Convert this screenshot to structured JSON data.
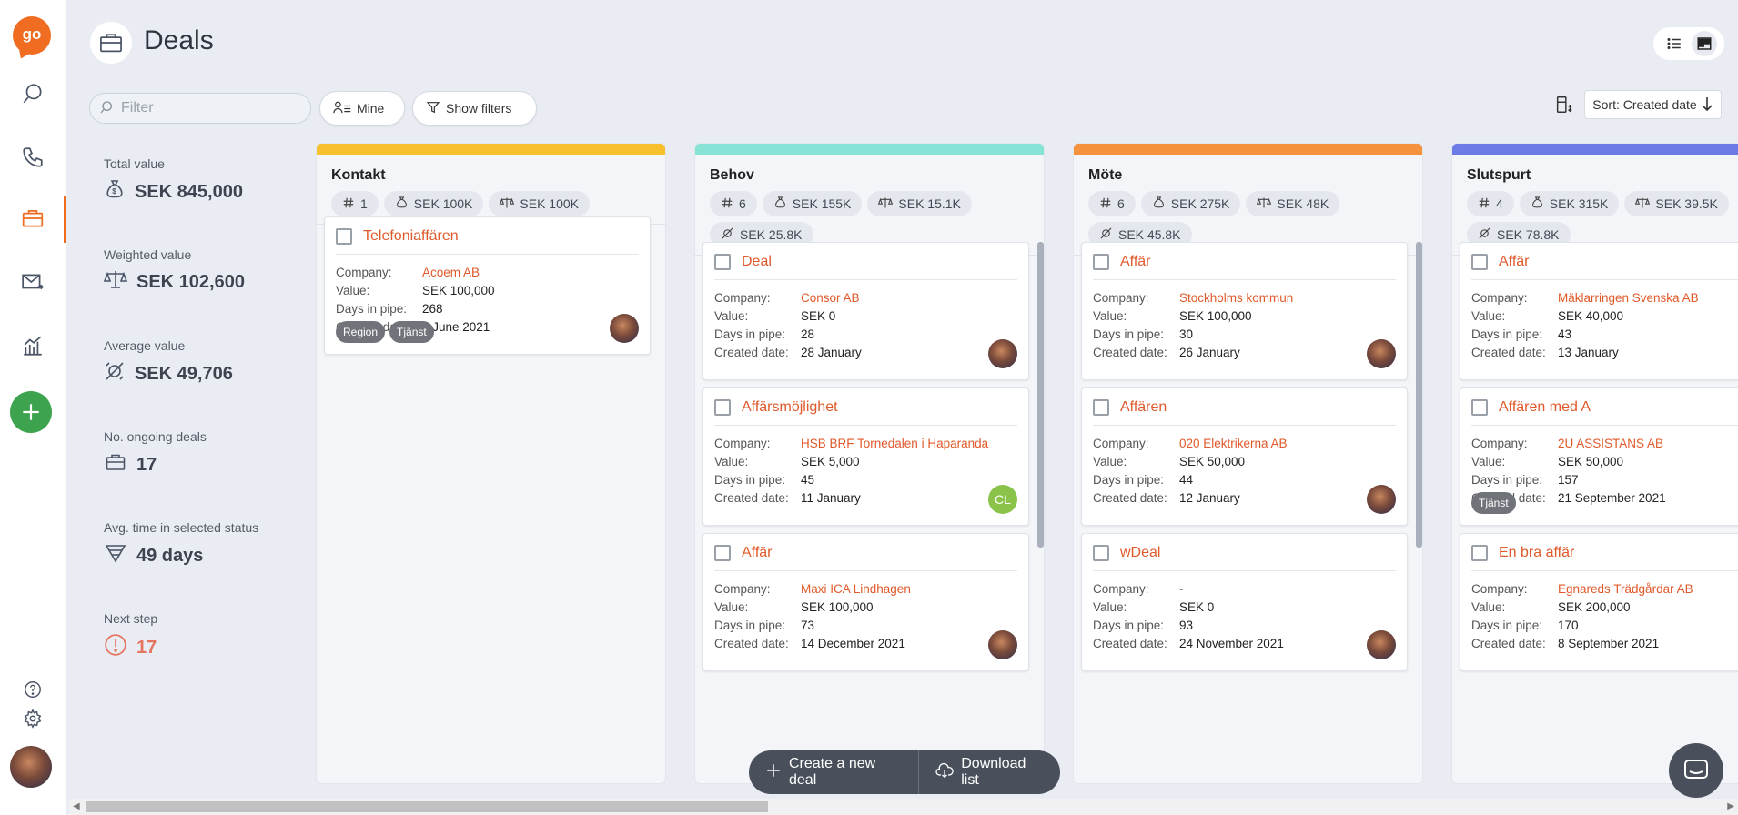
{
  "nav": {
    "logo": "go",
    "icons": [
      "search-icon",
      "phone-icon",
      "briefcase-icon",
      "mail-icon",
      "chart-icon",
      "plus-icon",
      "help-icon",
      "settings-icon"
    ],
    "accent": "#ef6c21"
  },
  "header": {
    "title": "Deals"
  },
  "toolbar": {
    "filter_placeholder": "Filter",
    "mine_label": "Mine",
    "show_filters_label": "Show filters",
    "sort_label": "Sort: Created date"
  },
  "stats": [
    {
      "label": "Total value",
      "value": "SEK 845,000",
      "icon": "money-bag-icon"
    },
    {
      "label": "Weighted value",
      "value": "SEK 102,600",
      "icon": "scale-icon"
    },
    {
      "label": "Average value",
      "value": "SEK 49,706",
      "icon": "average-icon"
    },
    {
      "label": "No. ongoing deals",
      "value": "17",
      "icon": "briefcase-icon"
    },
    {
      "label": "Avg. time in selected status",
      "value": "49 days",
      "icon": "funnel-icon"
    },
    {
      "label": "Next step",
      "value": "17",
      "icon": "alert-icon"
    }
  ],
  "columns": [
    {
      "title": "Kontakt",
      "color": "#f9c02e",
      "chips": [
        "1",
        "SEK 100K",
        "SEK 100K"
      ],
      "cards": [
        {
          "name": "Telefoniaffären",
          "company": "Acoem AB",
          "value": "SEK 100,000",
          "days": "268",
          "created": "2 June 2021",
          "tags": [
            "Region",
            "Tjänst"
          ],
          "owner": "avatar"
        }
      ]
    },
    {
      "title": "Behov",
      "color": "#86e3d6",
      "chips": [
        "6",
        "SEK 155K",
        "SEK 15.1K",
        "SEK 25.8K"
      ],
      "cards": [
        {
          "name": "Deal",
          "company": "Consor AB",
          "value": "SEK 0",
          "days": "28",
          "created": "28 January",
          "tags": [],
          "owner": "avatar"
        },
        {
          "name": "Affärsmöjlighet",
          "company": "HSB BRF Tornedalen i Haparanda",
          "value": "SEK 5,000",
          "days": "45",
          "created": "11 January",
          "tags": [],
          "owner": "CL"
        },
        {
          "name": "Affär",
          "company": "Maxi ICA Lindhagen",
          "value": "SEK 100,000",
          "days": "73",
          "created": "14 December 2021",
          "tags": [],
          "owner": "avatar"
        }
      ]
    },
    {
      "title": "Möte",
      "color": "#f4923e",
      "chips": [
        "6",
        "SEK 275K",
        "SEK 48K",
        "SEK 45.8K"
      ],
      "cards": [
        {
          "name": "Affär",
          "company": "Stockholms kommun",
          "value": "SEK 100,000",
          "days": "30",
          "created": "26 January",
          "tags": [],
          "owner": "avatar"
        },
        {
          "name": "Affären",
          "company": "020 Elektrikerna AB",
          "value": "SEK 50,000",
          "days": "44",
          "created": "12 January",
          "tags": [],
          "owner": "avatar"
        },
        {
          "name": "wDeal",
          "company": "-",
          "value": "SEK 0",
          "days": "93",
          "created": "24 November 2021",
          "tags": [],
          "owner": "avatar"
        }
      ]
    },
    {
      "title": "Slutspurt",
      "color": "#6b7ce6",
      "chips": [
        "4",
        "SEK 315K",
        "SEK 39.5K",
        "SEK 78.8K"
      ],
      "cards": [
        {
          "name": "Affär",
          "company": "Mäklarringen Svenska AB",
          "value": "SEK 40,000",
          "days": "43",
          "created": "13 January",
          "tags": [],
          "owner": ""
        },
        {
          "name": "Affären med A",
          "company": "2U ASSISTANS AB",
          "value": "SEK 50,000",
          "days": "157",
          "created": "21 September 2021",
          "tags": [
            "Tjänst"
          ],
          "owner": ""
        },
        {
          "name": "En bra affär",
          "company": "Egnareds Trädgårdar AB",
          "value": "SEK 200,000",
          "days": "170",
          "created": "8 September 2021",
          "tags": [],
          "owner": ""
        }
      ]
    }
  ],
  "field_labels": {
    "company": "Company:",
    "value": "Value:",
    "days": "Days in pipe:",
    "created": "Created date:"
  },
  "actions": {
    "create": "Create a new deal",
    "download": "Download list"
  }
}
